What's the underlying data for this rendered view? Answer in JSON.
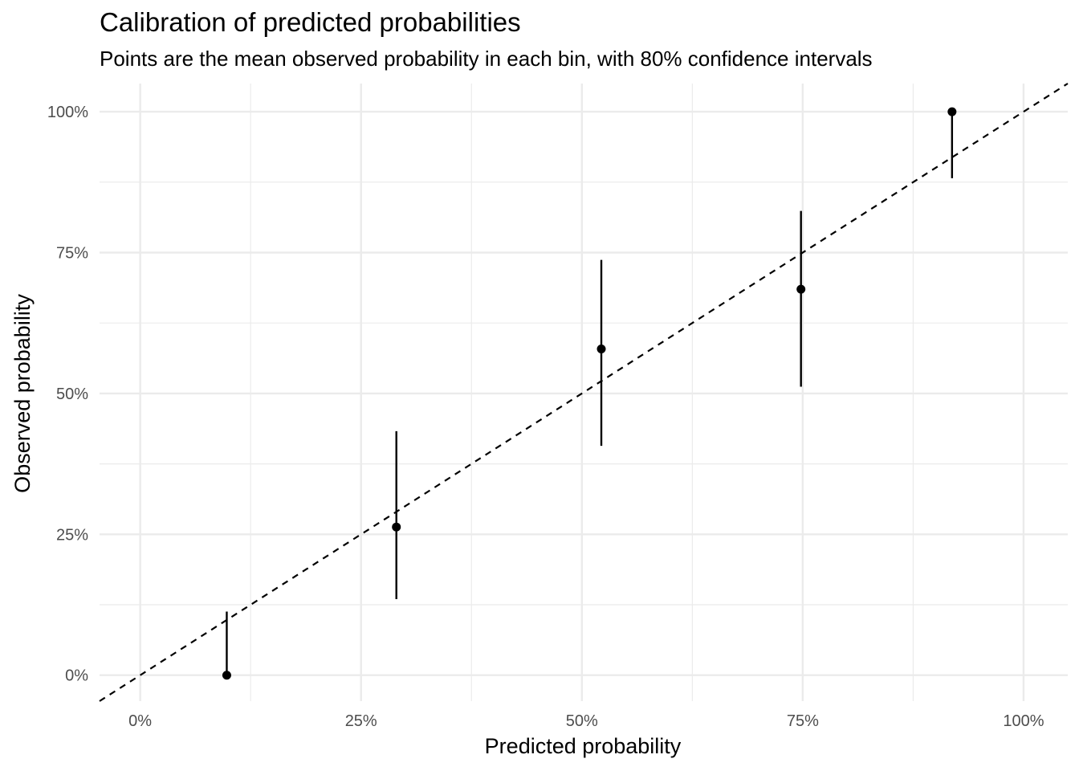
{
  "chart_data": {
    "type": "scatter",
    "title": "Calibration of predicted probabilities",
    "subtitle": "Points are the mean observed probability in each bin, with 80% confidence intervals",
    "xlabel": "Predicted probability",
    "ylabel": "Observed probability",
    "xlim": [
      -0.046,
      1.05
    ],
    "ylim": [
      -0.046,
      1.05
    ],
    "x_ticks": [
      0,
      0.25,
      0.5,
      0.75,
      1.0
    ],
    "x_tick_labels": [
      "0%",
      "25%",
      "50%",
      "75%",
      "100%"
    ],
    "y_ticks": [
      0,
      0.25,
      0.5,
      0.75,
      1.0
    ],
    "y_tick_labels": [
      "0%",
      "25%",
      "50%",
      "75%",
      "100%"
    ],
    "grid": true,
    "reference_line": {
      "slope": 1,
      "intercept": 0,
      "style": "dashed",
      "color": "#000000"
    },
    "points": [
      {
        "x": 0.098,
        "y": 0.0,
        "lower": 0.0,
        "upper": 0.113
      },
      {
        "x": 0.29,
        "y": 0.263,
        "lower": 0.135,
        "upper": 0.433
      },
      {
        "x": 0.522,
        "y": 0.579,
        "lower": 0.407,
        "upper": 0.737
      },
      {
        "x": 0.748,
        "y": 0.685,
        "lower": 0.512,
        "upper": 0.824
      },
      {
        "x": 0.919,
        "y": 1.0,
        "lower": 0.882,
        "upper": 1.0
      }
    ],
    "colors": {
      "point": "#000000",
      "grid": "#ebebeb",
      "tick_text": "#4d4d4d"
    }
  }
}
